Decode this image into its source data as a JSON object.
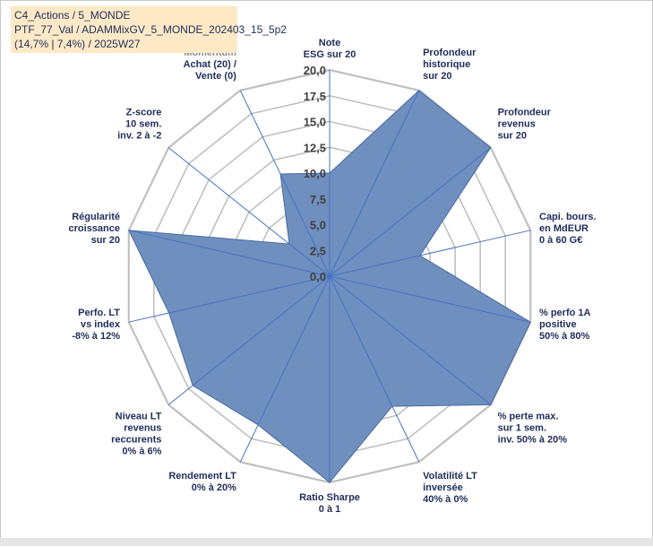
{
  "header": {
    "line1": "C4_Actions / 5_MONDE",
    "line2": "PTF_77_Val / ADAMMixGV_5_MONDE_202403_15_5p2",
    "line3": "(14,7% | 7,4%) / 2025W27"
  },
  "colors": {
    "fill": "#6f8fbf",
    "stroke": "#4a6aa3",
    "grid": "#c0c0c0",
    "spoke": "#4472c4",
    "label": "#1f2d5a",
    "titlebg": "#fde9c6"
  },
  "chart_data": {
    "type": "radar",
    "rmax": 20,
    "ticks": [
      "0,0",
      "2,5",
      "5,0",
      "7,5",
      "10,0",
      "12,5",
      "15,0",
      "17,5",
      "20,0"
    ],
    "tick_values": [
      0,
      2.5,
      5,
      7.5,
      10,
      12.5,
      15,
      17.5,
      20
    ],
    "categories": [
      {
        "lines": [
          "Note",
          "ESG sur 20"
        ],
        "value": 10
      },
      {
        "lines": [
          "Profondeur",
          "historique",
          "sur 20"
        ],
        "value": 20
      },
      {
        "lines": [
          "Profondeur",
          "revenus",
          "sur 20"
        ],
        "value": 20
      },
      {
        "lines": [
          "Capi. bours.",
          "en MdEUR",
          "0 à 60 G€"
        ],
        "value": 9
      },
      {
        "lines": [
          "% perfo 1A",
          "positive",
          "50% à 80%"
        ],
        "value": 20
      },
      {
        "lines": [
          "% perte max.",
          "sur 1 sem.",
          "inv. 50% à 20%"
        ],
        "value": 20
      },
      {
        "lines": [
          "Volatilité LT",
          "inversée",
          "40% à 0%"
        ],
        "value": 14
      },
      {
        "lines": [
          "Ratio Sharpe",
          "0 à 1"
        ],
        "value": 20
      },
      {
        "lines": [
          "Rendement LT",
          "0% à 20%"
        ],
        "value": 16
      },
      {
        "lines": [
          "Niveau LT",
          "revenus",
          "reccurents",
          "0% à 6%"
        ],
        "value": 17
      },
      {
        "lines": [
          "Perfo. LT",
          "vs index",
          "-8% à 12%"
        ],
        "value": 16
      },
      {
        "lines": [
          "Régularité",
          "croissance",
          "sur 20"
        ],
        "value": 20
      },
      {
        "lines": [
          "Z-score",
          "10 sem.",
          "inv. 2 à -2"
        ],
        "value": 5
      },
      {
        "lines": [
          "Momentum",
          "Achat (20) /",
          "Vente (0)"
        ],
        "value": 11,
        "first_line_muted": true
      }
    ]
  }
}
